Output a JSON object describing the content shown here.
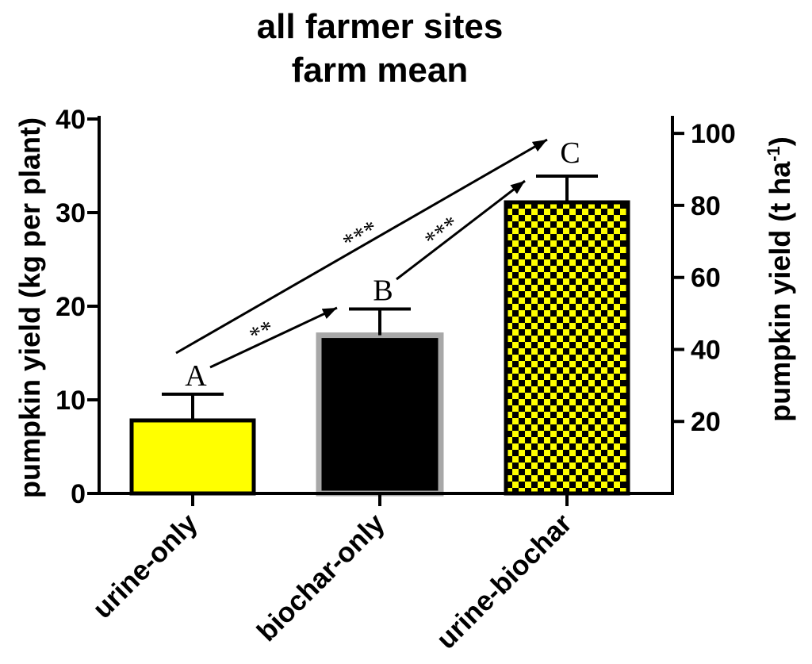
{
  "chart_data": {
    "type": "bar",
    "title": [
      "all farmer sites",
      "farm mean"
    ],
    "categories": [
      "urine-only",
      "biochar-only",
      "urine-biochar"
    ],
    "values": [
      7.8,
      16.9,
      31.1
    ],
    "errors": [
      2.8,
      2.8,
      2.8
    ],
    "group_letters": [
      "A",
      "B",
      "C"
    ],
    "ylabel": "pumpkin yield (kg per plant)",
    "ylim": [
      0,
      40
    ],
    "yticks": [
      0,
      10,
      20,
      30,
      40
    ],
    "y2label": {
      "text": "pumpkin yield (t ha",
      "sup": "-1",
      "close": ")"
    },
    "y2lim": [
      0,
      104
    ],
    "y2ticks": [
      20,
      40,
      60,
      80,
      100
    ],
    "comparisons": [
      {
        "from": 0,
        "to": 1,
        "label": "**"
      },
      {
        "from": 1,
        "to": 2,
        "label": "***"
      },
      {
        "from": 0,
        "to": 2,
        "label": "***"
      }
    ],
    "bar_colors": [
      {
        "fill": "#ffff00",
        "stroke": "#000000"
      },
      {
        "fill": "#000000",
        "stroke": "#a8a8a8"
      },
      {
        "fill": "#ffff00",
        "fill2": "#000000",
        "stroke": "#000000"
      }
    ],
    "grid": false
  }
}
